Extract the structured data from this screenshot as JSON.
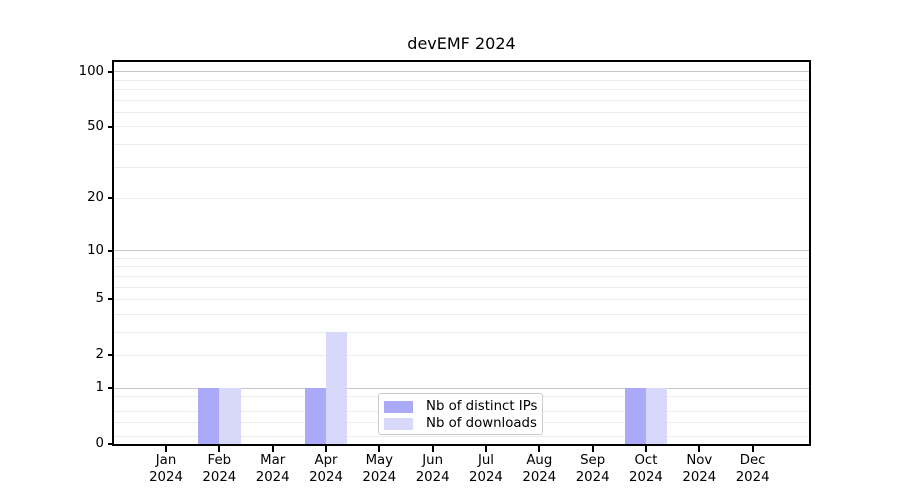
{
  "chart_data": {
    "type": "bar",
    "title": "devEMF 2024",
    "year_label": "2024",
    "months": [
      "Jan",
      "Feb",
      "Mar",
      "Apr",
      "May",
      "Jun",
      "Jul",
      "Aug",
      "Sep",
      "Oct",
      "Nov",
      "Dec"
    ],
    "series": [
      {
        "name": "Nb of distinct IPs",
        "key": "distinct-ips",
        "color": "#aaaaf8",
        "values": [
          0,
          1,
          0,
          1,
          0,
          0,
          0,
          0,
          0,
          1,
          0,
          0
        ]
      },
      {
        "name": "Nb of downloads",
        "key": "downloads",
        "color": "#d8d8fa",
        "values": [
          0,
          1,
          0,
          3,
          0,
          0,
          0,
          0,
          0,
          1,
          0,
          0
        ]
      }
    ],
    "y_axis": {
      "scale": "log1p",
      "ticks": [
        0,
        1,
        2,
        5,
        10,
        20,
        50,
        100
      ],
      "max": 113,
      "decade_ticks": [
        1,
        10,
        100
      ]
    },
    "x_axis": {
      "tick_label_lines": 2
    },
    "legend": {
      "position": "lower center"
    },
    "grid": {
      "on": true,
      "minor_values": [
        0.1,
        0.3,
        0.5,
        0.8,
        3,
        4,
        6,
        7,
        8,
        9,
        30,
        40,
        60,
        70,
        80,
        90
      ],
      "major_color": "#c6c6c6",
      "minor_color": "#ececec"
    },
    "colors": {
      "background": "#ffffff",
      "axis": "#000000",
      "text": "#000000",
      "legend_border": "#cccccc",
      "legend_bg": "#ffffff"
    }
  }
}
